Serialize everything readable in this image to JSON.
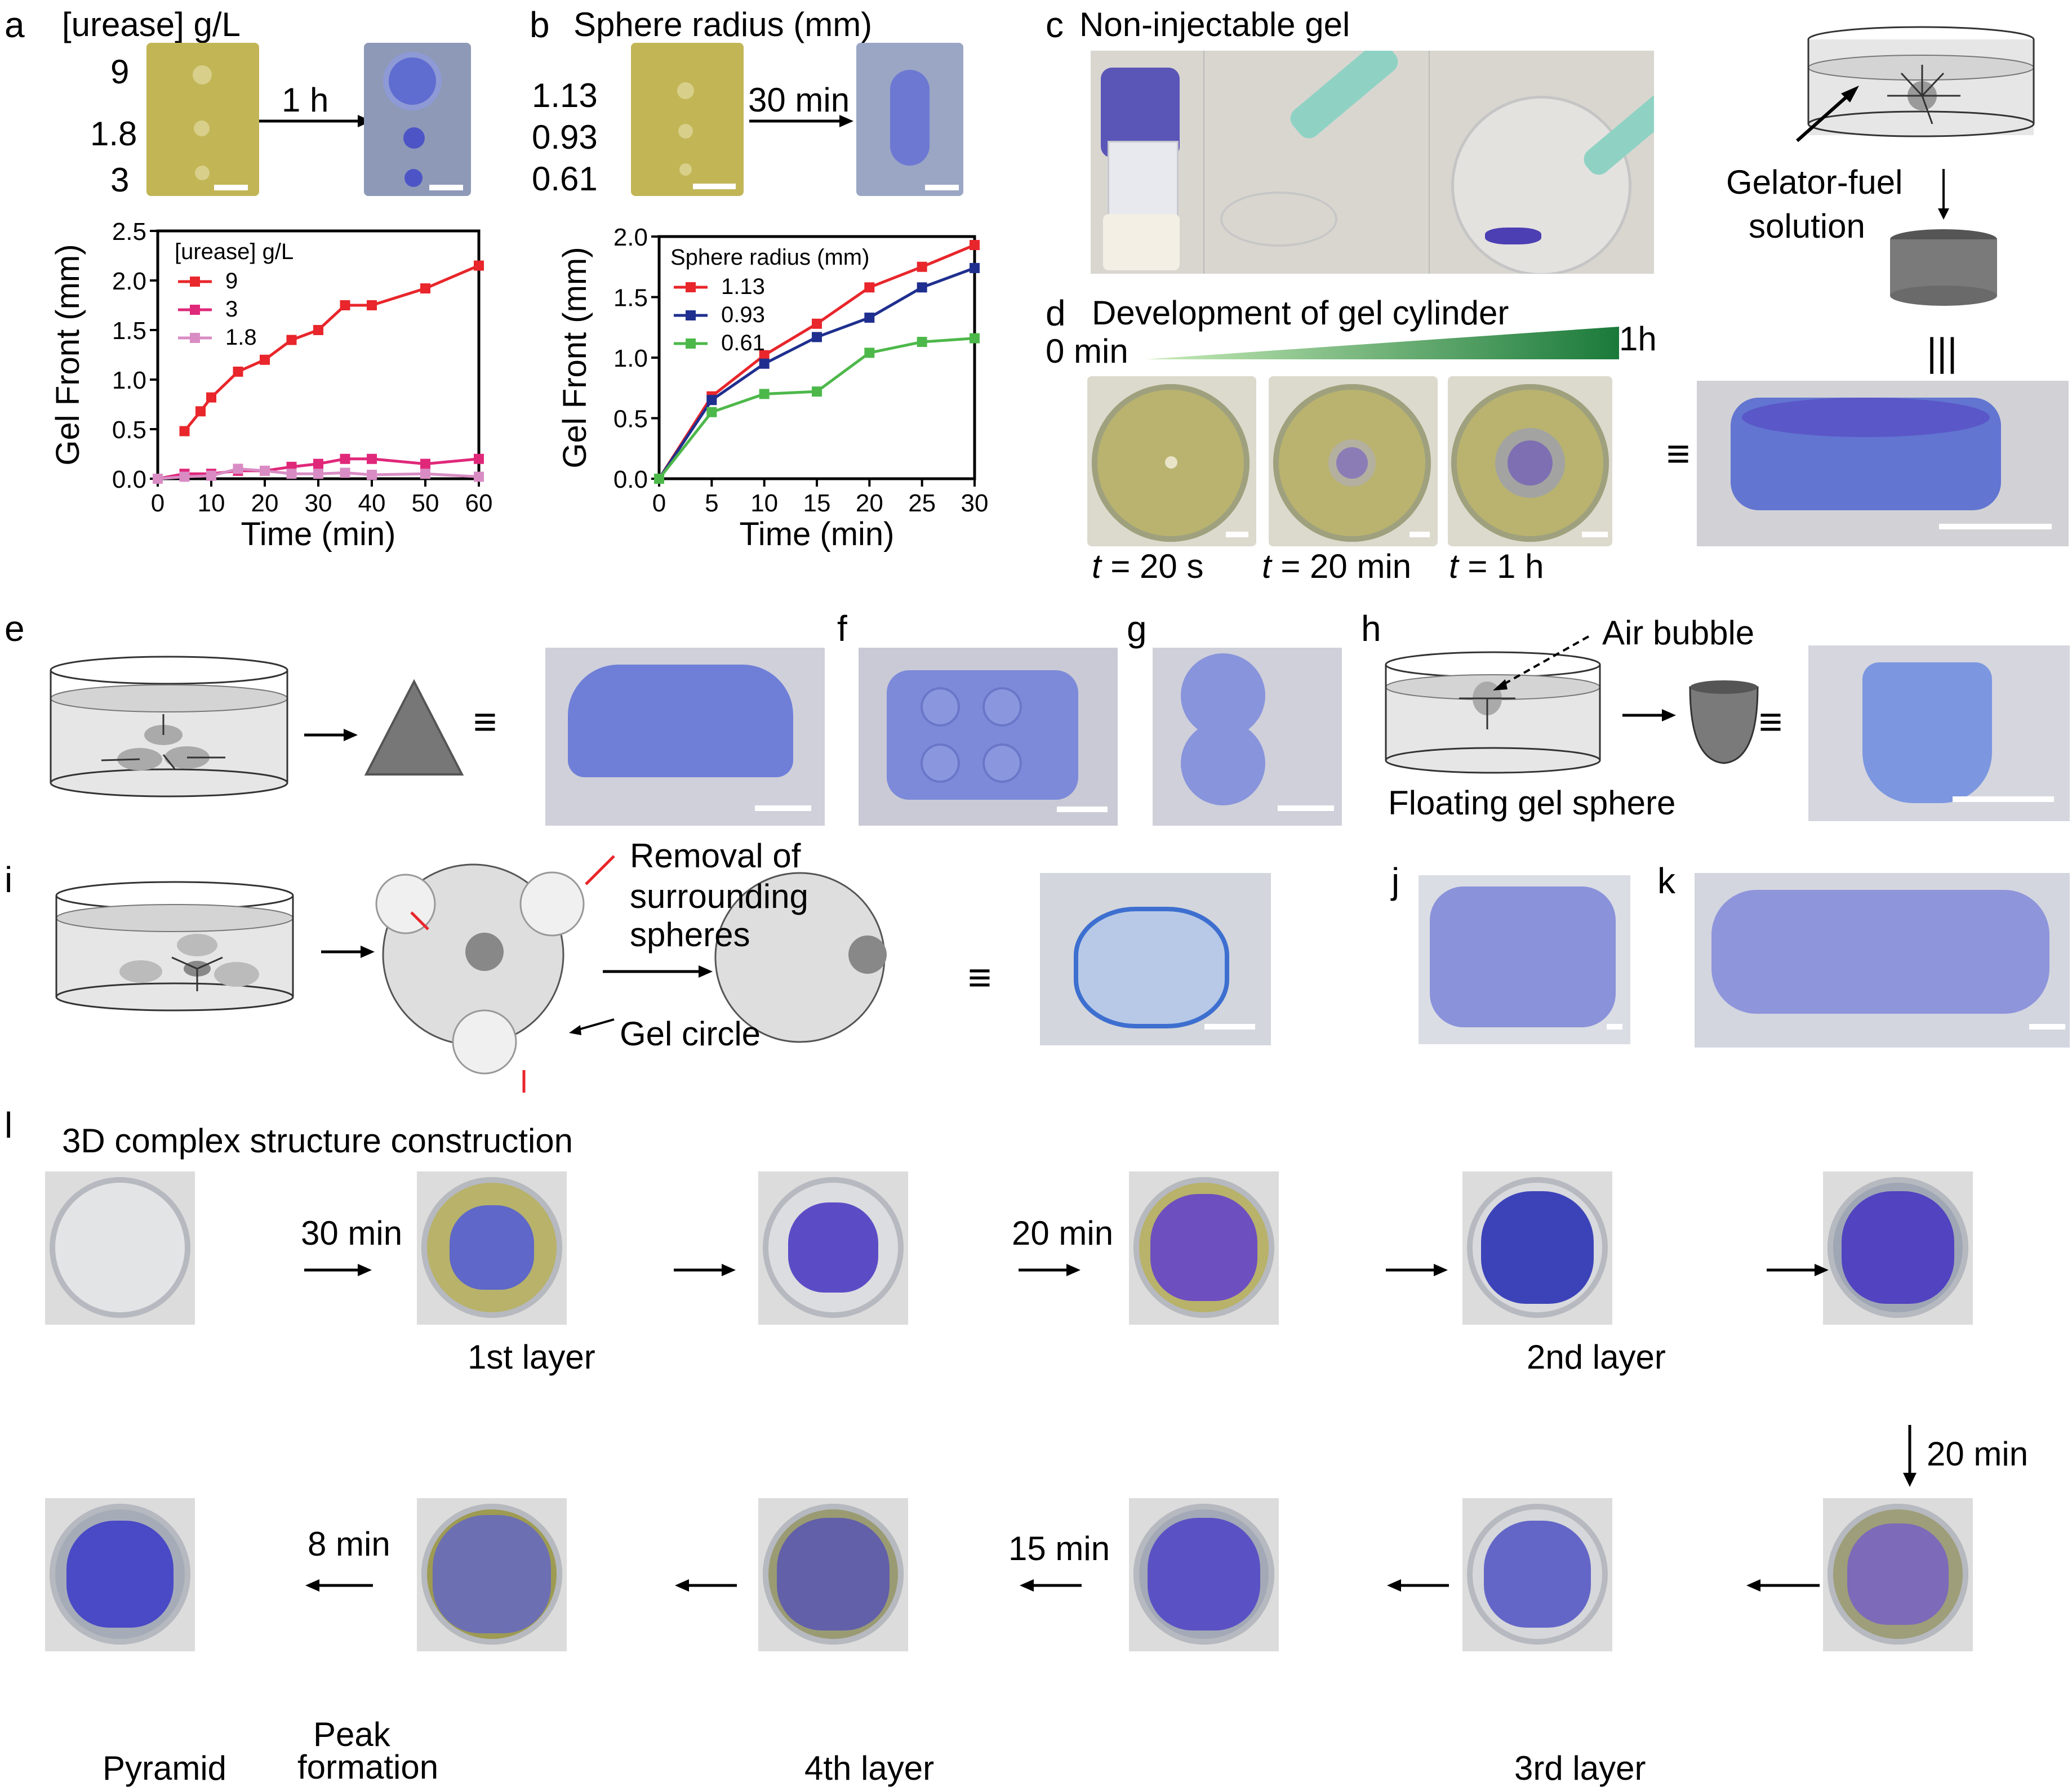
{
  "panels": {
    "a": {
      "letter": "a",
      "header": "[urease] g/L",
      "rows": [
        "9",
        "1.8",
        "3"
      ],
      "arrow_time": "1 h"
    },
    "b": {
      "letter": "b",
      "header": "Sphere radius (mm)",
      "rows": [
        "1.13",
        "0.93",
        "0.61"
      ],
      "arrow_time": "30 min"
    },
    "c": {
      "letter": "c",
      "title": "Non-injectable gel",
      "schematic_label_1": "Gelator-fuel",
      "schematic_label_2": "solution",
      "equiv": "|||"
    },
    "d": {
      "letter": "d",
      "title": "Development of gel cylinder",
      "start": "0 min",
      "end": "1h",
      "captions": [
        {
          "t": "t",
          "eq": " = 20 s"
        },
        {
          "t": "t",
          "eq": " = 20 min"
        },
        {
          "t": "t",
          "eq": " = 1 h"
        }
      ],
      "equiv": "≡"
    },
    "e": {
      "letter": "e",
      "equiv": "≡"
    },
    "f": {
      "letter": "f"
    },
    "g": {
      "letter": "g"
    },
    "h": {
      "letter": "h",
      "bubble": "Air bubble",
      "floating": "Floating gel sphere",
      "equiv": "≡"
    },
    "i": {
      "letter": "i",
      "removal": [
        "Removal of",
        "surrounding",
        "spheres"
      ],
      "circle": "Gel circle",
      "equiv": "≡"
    },
    "j": {
      "letter": "j"
    },
    "k": {
      "letter": "k"
    },
    "l": {
      "letter": "l",
      "title": "3D complex structure construction",
      "row1_arrows": [
        "30 min",
        "",
        "20 min",
        "",
        ""
      ],
      "row1_captions": [
        "",
        "1st layer",
        "",
        "",
        "2nd layer",
        ""
      ],
      "down_arrow": "20 min",
      "row2_arrows": [
        "8 min",
        "",
        "15 min",
        "",
        ""
      ],
      "row2_captions": [
        "Pyramid",
        "",
        "4th layer",
        "",
        "3rd layer",
        ""
      ],
      "peak": [
        "Peak",
        "formation"
      ]
    }
  },
  "colors": {
    "gel_blue": "#6f7fd8",
    "gel_purple": "#7a55c9",
    "yellow": "#c9b84a",
    "red": "#e8262b",
    "pink": "#e0287a",
    "lightpink": "#d98cc4",
    "navy": "#1f2f8f",
    "green": "#4db84a"
  },
  "chart_data": [
    {
      "type": "line",
      "xlabel": "Time (min)",
      "ylabel": "Gel Front (mm)",
      "xlim": [
        0,
        60
      ],
      "ylim": [
        0,
        2.5
      ],
      "xticks": [
        "0",
        "10",
        "20",
        "30",
        "40",
        "50",
        "60"
      ],
      "yticks": [
        "0.0",
        "0.5",
        "1.0",
        "1.5",
        "2.0",
        "2.5"
      ],
      "legend_title": "[urease] g/L",
      "series": [
        {
          "name": "9",
          "color": "#e8262b",
          "x": [
            5,
            8,
            10,
            15,
            20,
            25,
            30,
            35,
            40,
            50,
            60
          ],
          "values": [
            0.48,
            0.68,
            0.82,
            1.08,
            1.2,
            1.4,
            1.5,
            1.75,
            1.75,
            1.92,
            2.15
          ]
        },
        {
          "name": "3",
          "color": "#e0287a",
          "x": [
            0,
            5,
            10,
            15,
            20,
            25,
            30,
            35,
            40,
            50,
            60
          ],
          "values": [
            0.0,
            0.05,
            0.05,
            0.08,
            0.08,
            0.12,
            0.15,
            0.2,
            0.2,
            0.15,
            0.2
          ]
        },
        {
          "name": "1.8",
          "color": "#d98cc4",
          "x": [
            0,
            5,
            10,
            15,
            20,
            25,
            30,
            35,
            40,
            50,
            60
          ],
          "values": [
            0.0,
            0.02,
            0.03,
            0.1,
            0.08,
            0.05,
            0.05,
            0.06,
            0.04,
            0.05,
            0.02
          ]
        }
      ]
    },
    {
      "type": "line",
      "xlabel": "Time (min)",
      "ylabel": "Gel Front (mm)",
      "xlim": [
        0,
        30
      ],
      "ylim": [
        0,
        2.0
      ],
      "xticks": [
        "0",
        "5",
        "10",
        "15",
        "20",
        "25",
        "30"
      ],
      "yticks": [
        "0.0",
        "0.5",
        "1.0",
        "1.5",
        "2.0"
      ],
      "legend_title": "Sphere radius (mm)",
      "series": [
        {
          "name": "1.13",
          "color": "#e8262b",
          "x": [
            0,
            5,
            10,
            15,
            20,
            25,
            30
          ],
          "values": [
            0,
            0.68,
            1.02,
            1.28,
            1.58,
            1.75,
            1.93
          ]
        },
        {
          "name": "0.93",
          "color": "#1f2f8f",
          "x": [
            0,
            5,
            10,
            15,
            20,
            25,
            30
          ],
          "values": [
            0,
            0.65,
            0.95,
            1.17,
            1.33,
            1.58,
            1.74
          ]
        },
        {
          "name": "0.61",
          "color": "#4db84a",
          "x": [
            0,
            5,
            10,
            15,
            20,
            25,
            30
          ],
          "values": [
            0,
            0.55,
            0.7,
            0.72,
            1.04,
            1.13,
            1.16
          ]
        }
      ]
    }
  ]
}
